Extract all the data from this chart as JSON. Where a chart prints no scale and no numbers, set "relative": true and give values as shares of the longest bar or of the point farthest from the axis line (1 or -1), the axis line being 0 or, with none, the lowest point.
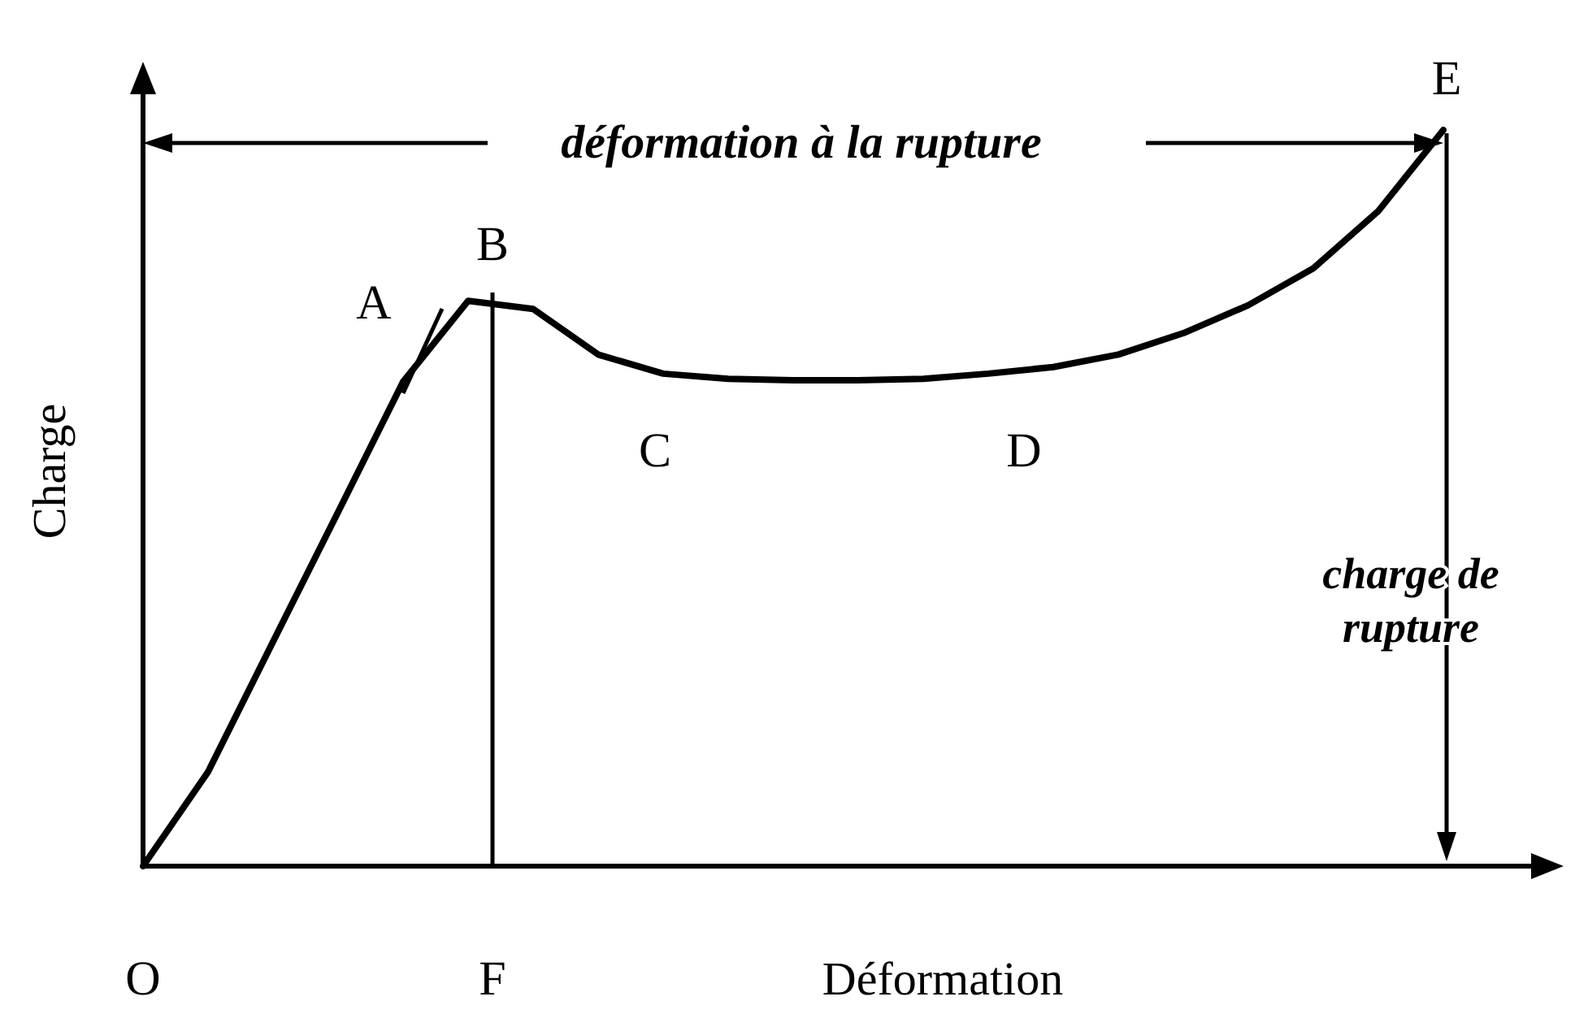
{
  "chart_data": {
    "type": "line",
    "relative": true,
    "xlabel": "Déformation",
    "ylabel": "Charge",
    "marker": "none",
    "color": "#000000",
    "categories": [
      null,
      null,
      null,
      null,
      null,
      null,
      null,
      null,
      null,
      null,
      null,
      null,
      null,
      null,
      null,
      null,
      null,
      null,
      null,
      null,
      null
    ],
    "values": [
      0,
      0.128,
      0.305,
      0.481,
      0.658,
      0.768,
      0.757,
      0.695,
      0.669,
      0.662,
      0.66,
      0.66,
      0.662,
      0.669,
      0.678,
      0.695,
      0.724,
      0.762,
      0.812,
      0.89,
      1
    ],
    "annotations": [
      "déformation à la rupture",
      "A",
      "B",
      "C",
      "D",
      "E",
      "charge de\nrupture",
      "O",
      "F"
    ]
  }
}
